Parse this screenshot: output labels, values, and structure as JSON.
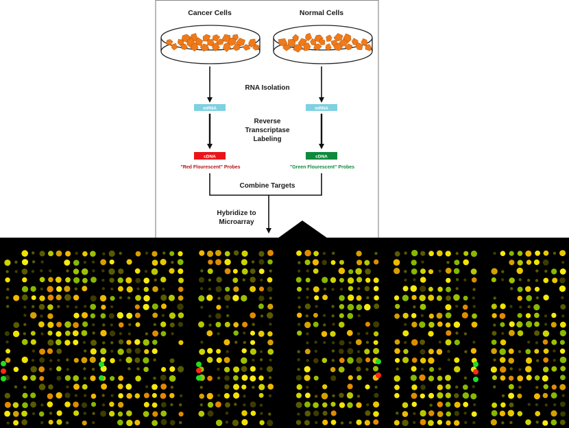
{
  "labels": {
    "cancer_cells": "Cancer Cells",
    "normal_cells": "Normal Cells",
    "rna_isolation": "RNA Isolation",
    "mrna_left": "mRNA",
    "mrna_right": "mRNA",
    "rt_line1": "Reverse",
    "rt_line2": "Transcriptase",
    "rt_line3": "Labeling",
    "cdna_left": "cDNA",
    "cdna_right": "cDNA",
    "red_probes": "\"Red Flourescent\" Probes",
    "green_probes": "\"Green Flourescent\" Probes",
    "combine_targets": "Combine Targets",
    "hybridize_line1": "Hybridize to",
    "hybridize_line2": "Microarray"
  },
  "colors": {
    "panel_border": "#8c8c8c",
    "mrna_box": "#7fd0e0",
    "cdna_red": "#e8141a",
    "cdna_green": "#0f8a3c",
    "red_text": "#b01418",
    "green_text": "#0f8a3c",
    "cell_fill": "#f07a1a",
    "array_bg": "#000000",
    "spot_yellow": "#f2e200",
    "spot_green": "#22dd22",
    "spot_red": "#ff2a10"
  }
}
